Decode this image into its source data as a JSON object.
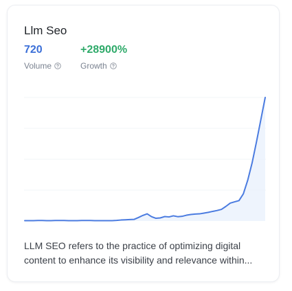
{
  "card": {
    "title": "Llm Seo",
    "volume": {
      "value": "720",
      "label": "Volume"
    },
    "growth": {
      "value": "+28900%",
      "label": "Growth"
    },
    "description": "LLM SEO refers to the practice of optimizing digital content to enhance its visibility and relevance within..."
  },
  "icons": {
    "help": "question-circle-icon"
  },
  "colors": {
    "volume": "#3b6fd8",
    "growth": "#2faa6a",
    "line": "#4a7be0",
    "area": "#eaf1fd"
  },
  "chart_data": {
    "type": "area",
    "grid": true,
    "values": [
      0.3,
      0.3,
      0.3,
      0.4,
      0.4,
      0.3,
      0.3,
      0.4,
      0.4,
      0.4,
      0.3,
      0.3,
      0.3,
      0.4,
      0.4,
      0.4,
      0.3,
      0.3,
      0.3,
      0.3,
      0.3,
      0.5,
      0.8,
      1.0,
      1.2,
      1.3,
      2.8,
      4.5,
      5.8,
      3.5,
      2.2,
      2.5,
      3.6,
      3.3,
      4.2,
      3.5,
      3.8,
      4.7,
      5.3,
      5.6,
      5.8,
      6.4,
      7.0,
      7.8,
      8.5,
      9.4,
      11.8,
      14.5,
      15.5,
      16.5,
      22.0,
      33.0,
      47.0,
      64.0,
      82.0,
      100.0
    ]
  }
}
